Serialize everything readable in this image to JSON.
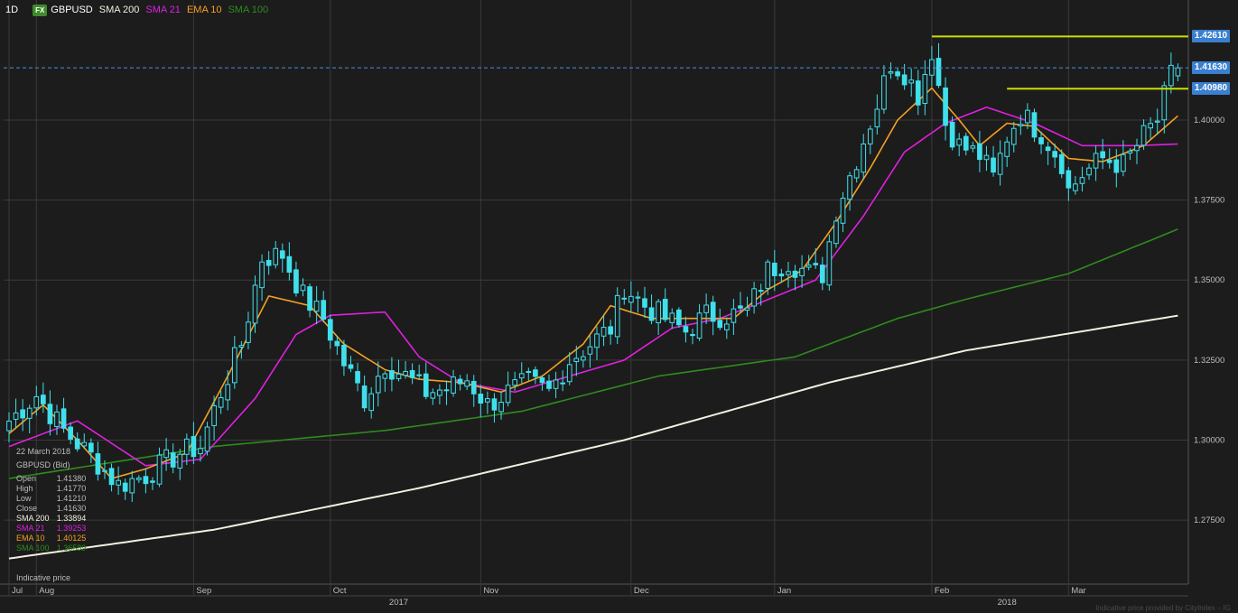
{
  "header": {
    "timeframe": "1D",
    "fx_badge": "FX",
    "symbol": "GBPUSD",
    "indicators": [
      {
        "label": "SMA 200",
        "color": "#f3efe0"
      },
      {
        "label": "SMA 21",
        "color": "#e020e0"
      },
      {
        "label": "EMA 10",
        "color": "#f5a020"
      },
      {
        "label": "SMA 100",
        "color": "#2e8b1e"
      }
    ]
  },
  "info_panel": {
    "date": "22 March 2018",
    "instrument": "GBPUSD (Bid)",
    "rows": [
      {
        "label": "Open",
        "value": "1.41380"
      },
      {
        "label": "High",
        "value": "1.41770"
      },
      {
        "label": "Low",
        "value": "1.41210"
      },
      {
        "label": "Close",
        "value": "1.41630"
      }
    ],
    "indicator_rows": [
      {
        "label": "SMA 200",
        "value": "1.33894",
        "color": "#f3efe0"
      },
      {
        "label": "SMA 21",
        "value": "1.39253",
        "color": "#e020e0"
      },
      {
        "label": "EMA 10",
        "value": "1.40125",
        "color": "#f5a020"
      },
      {
        "label": "SMA 100",
        "value": "1.36589",
        "color": "#2e8b1e"
      }
    ],
    "indicative": "Indicative price"
  },
  "price_tags": [
    {
      "label": "1.42610",
      "value": 1.4261
    },
    {
      "label": "1.41630",
      "value": 1.4163
    },
    {
      "label": "1.40980",
      "value": 1.4098
    }
  ],
  "chart_data": {
    "type": "candlestick",
    "symbol": "GBPUSD",
    "timeframe": "1D",
    "ylim": [
      1.255,
      1.4375
    ],
    "y_ticks": [
      1.275,
      1.3,
      1.325,
      1.35,
      1.375,
      1.4
    ],
    "y_tick_labels": [
      "1.27500",
      "1.30000",
      "1.32500",
      "1.35000",
      "1.37500",
      "1.40000"
    ],
    "x_month_labels": [
      {
        "label": "Jul",
        "bar": 0
      },
      {
        "label": "Aug",
        "bar": 4
      },
      {
        "label": "Sep",
        "bar": 27
      },
      {
        "label": "Oct",
        "bar": 47
      },
      {
        "label": "Nov",
        "bar": 69
      },
      {
        "label": "Dec",
        "bar": 91
      },
      {
        "label": "Jan",
        "bar": 112
      },
      {
        "label": "Feb",
        "bar": 135
      },
      {
        "label": "Mar",
        "bar": 155
      }
    ],
    "x_year_labels": [
      {
        "label": "2017",
        "bar": 57
      },
      {
        "label": "2018",
        "bar": 146
      }
    ],
    "bar_count": 172,
    "close_anchors": [
      [
        0,
        1.306
      ],
      [
        4,
        1.314
      ],
      [
        8,
        1.303
      ],
      [
        12,
        1.295
      ],
      [
        16,
        1.286
      ],
      [
        20,
        1.289
      ],
      [
        25,
        1.296
      ],
      [
        28,
        1.298
      ],
      [
        31,
        1.315
      ],
      [
        34,
        1.33
      ],
      [
        37,
        1.357
      ],
      [
        40,
        1.358
      ],
      [
        43,
        1.345
      ],
      [
        46,
        1.338
      ],
      [
        49,
        1.324
      ],
      [
        52,
        1.313
      ],
      [
        55,
        1.324
      ],
      [
        58,
        1.32
      ],
      [
        61,
        1.315
      ],
      [
        64,
        1.316
      ],
      [
        67,
        1.319
      ],
      [
        70,
        1.311
      ],
      [
        73,
        1.315
      ],
      [
        76,
        1.318
      ],
      [
        79,
        1.315
      ],
      [
        82,
        1.325
      ],
      [
        85,
        1.33
      ],
      [
        88,
        1.335
      ],
      [
        90,
        1.348
      ],
      [
        93,
        1.342
      ],
      [
        96,
        1.338
      ],
      [
        99,
        1.334
      ],
      [
        102,
        1.339
      ],
      [
        105,
        1.339
      ],
      [
        108,
        1.34
      ],
      [
        111,
        1.353
      ],
      [
        114,
        1.356
      ],
      [
        117,
        1.352
      ],
      [
        119,
        1.352
      ],
      [
        121,
        1.372
      ],
      [
        124,
        1.388
      ],
      [
        127,
        1.405
      ],
      [
        129,
        1.418
      ],
      [
        131,
        1.415
      ],
      [
        133,
        1.408
      ],
      [
        134,
        1.415
      ],
      [
        135,
        1.422
      ],
      [
        136,
        1.411
      ],
      [
        137,
        1.399
      ],
      [
        139,
        1.392
      ],
      [
        142,
        1.389
      ],
      [
        144,
        1.382
      ],
      [
        146,
        1.395
      ],
      [
        148,
        1.402
      ],
      [
        151,
        1.396
      ],
      [
        154,
        1.387
      ],
      [
        155,
        1.378
      ],
      [
        157,
        1.383
      ],
      [
        160,
        1.388
      ],
      [
        163,
        1.386
      ],
      [
        166,
        1.395
      ],
      [
        168,
        1.4
      ],
      [
        170,
        1.414
      ],
      [
        171,
        1.4163
      ]
    ],
    "last_candle": {
      "date": "22 March 2018",
      "open": 1.4138,
      "high": 1.4177,
      "low": 1.4121,
      "close": 1.4163
    },
    "sma200": {
      "name": "SMA 200",
      "points": [
        [
          0,
          1.263
        ],
        [
          30,
          1.272
        ],
        [
          60,
          1.285
        ],
        [
          90,
          1.3
        ],
        [
          120,
          1.318
        ],
        [
          140,
          1.328
        ],
        [
          171,
          1.3389
        ]
      ]
    },
    "sma100": {
      "name": "SMA 100",
      "points": [
        [
          0,
          1.288
        ],
        [
          30,
          1.298
        ],
        [
          55,
          1.303
        ],
        [
          75,
          1.309
        ],
        [
          95,
          1.32
        ],
        [
          115,
          1.326
        ],
        [
          130,
          1.338
        ],
        [
          140,
          1.344
        ],
        [
          155,
          1.352
        ],
        [
          171,
          1.3659
        ]
      ]
    },
    "sma21": {
      "name": "SMA 21",
      "points": [
        [
          0,
          1.298
        ],
        [
          10,
          1.306
        ],
        [
          20,
          1.292
        ],
        [
          28,
          1.294
        ],
        [
          36,
          1.313
        ],
        [
          42,
          1.333
        ],
        [
          47,
          1.339
        ],
        [
          55,
          1.34
        ],
        [
          60,
          1.326
        ],
        [
          66,
          1.318
        ],
        [
          74,
          1.315
        ],
        [
          82,
          1.32
        ],
        [
          90,
          1.325
        ],
        [
          97,
          1.335
        ],
        [
          104,
          1.338
        ],
        [
          110,
          1.343
        ],
        [
          118,
          1.35
        ],
        [
          125,
          1.37
        ],
        [
          131,
          1.39
        ],
        [
          137,
          1.399
        ],
        [
          143,
          1.404
        ],
        [
          150,
          1.399
        ],
        [
          157,
          1.392
        ],
        [
          165,
          1.392
        ],
        [
          171,
          1.3925
        ]
      ]
    },
    "ema10": {
      "name": "EMA 10",
      "points": [
        [
          0,
          1.302
        ],
        [
          5,
          1.311
        ],
        [
          10,
          1.3
        ],
        [
          15,
          1.288
        ],
        [
          20,
          1.291
        ],
        [
          26,
          1.296
        ],
        [
          32,
          1.32
        ],
        [
          38,
          1.345
        ],
        [
          44,
          1.342
        ],
        [
          49,
          1.33
        ],
        [
          55,
          1.322
        ],
        [
          60,
          1.319
        ],
        [
          66,
          1.318
        ],
        [
          72,
          1.315
        ],
        [
          78,
          1.32
        ],
        [
          84,
          1.33
        ],
        [
          88,
          1.342
        ],
        [
          94,
          1.338
        ],
        [
          100,
          1.338
        ],
        [
          106,
          1.338
        ],
        [
          111,
          1.347
        ],
        [
          116,
          1.353
        ],
        [
          121,
          1.368
        ],
        [
          126,
          1.385
        ],
        [
          130,
          1.4
        ],
        [
          135,
          1.41
        ],
        [
          139,
          1.4
        ],
        [
          142,
          1.392
        ],
        [
          146,
          1.399
        ],
        [
          150,
          1.398
        ],
        [
          155,
          1.388
        ],
        [
          160,
          1.387
        ],
        [
          166,
          1.392
        ],
        [
          171,
          1.4013
        ]
      ]
    },
    "resistance_lines": [
      {
        "value": 1.4261,
        "from_bar": 135,
        "color": "#c8e000"
      },
      {
        "value": 1.4098,
        "from_bar": 146,
        "color": "#c8e000"
      }
    ],
    "last_price_line": {
      "value": 1.4163,
      "color": "#4a90e2"
    },
    "colors": {
      "candle": "#3fe0ec",
      "grid": "#3a3a3a",
      "background": "#1c1c1c",
      "axis_text": "#bdbdbd"
    }
  },
  "footnote": "Indicative price provided by CityIndex – IG"
}
